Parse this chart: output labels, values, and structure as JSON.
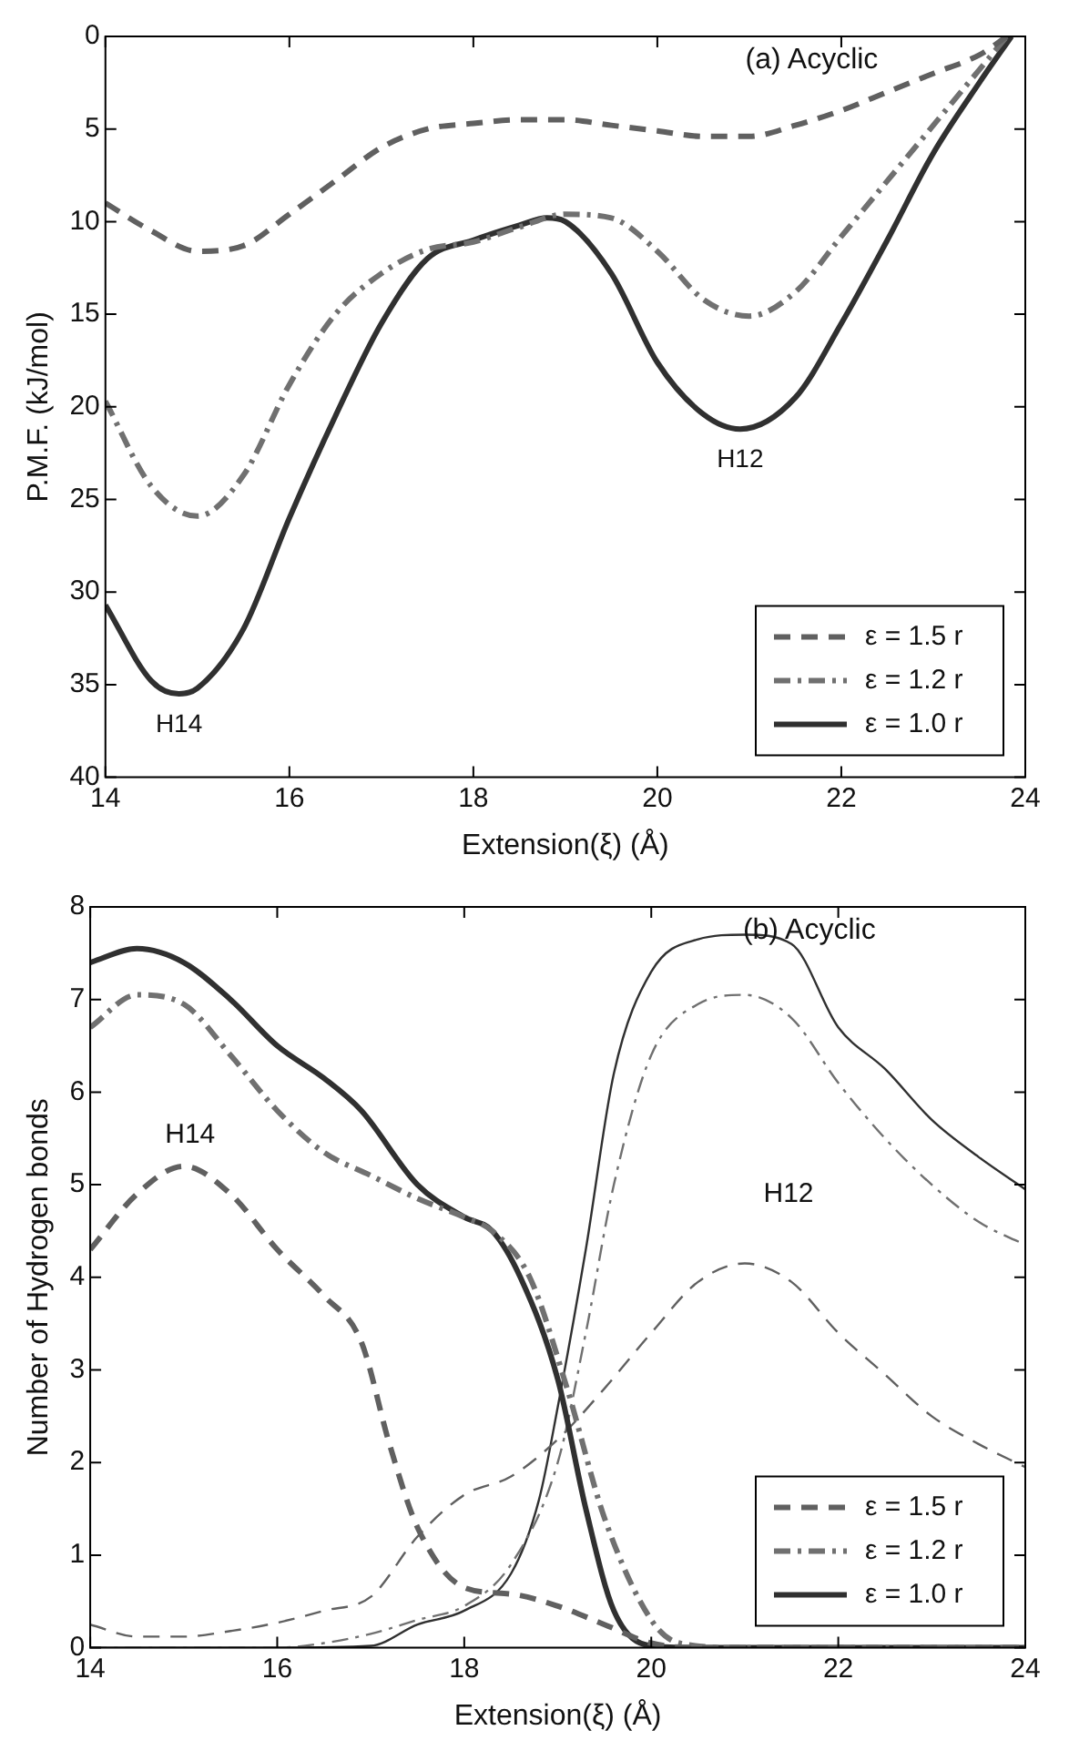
{
  "chart_data": [
    {
      "type": "line",
      "xlabel": "Extension(ξ) (Å)",
      "ylabel": "P.M.F. (kJ/mol)",
      "xlim": [
        14,
        24
      ],
      "xticks": [
        14,
        16,
        18,
        20,
        22,
        24
      ],
      "ylim": [
        40,
        0
      ],
      "yticks": [
        0,
        5,
        10,
        15,
        20,
        25,
        30,
        35,
        40
      ],
      "grid": false,
      "legend": "bottom right",
      "marker": "none",
      "annotations": [
        "(a) Acyclic",
        {
          "text": "H14",
          "x": 14.8,
          "y": 35.5
        },
        {
          "text": "H12",
          "x": 20.9,
          "y": 21.2
        }
      ],
      "series": [
        {
          "name": "ε = 1.5 r",
          "color": "#606060",
          "line_style": "dashed",
          "x": [
            14,
            14.5,
            15,
            15.5,
            16,
            16.5,
            17,
            17.5,
            18,
            18.5,
            19,
            19.5,
            20,
            20.5,
            21,
            21.5,
            22,
            22.5,
            23,
            23.5,
            23.8
          ],
          "values": [
            9,
            10.5,
            11.6,
            11.3,
            9.6,
            7.8,
            6,
            5,
            4.7,
            4.5,
            4.5,
            4.8,
            5.1,
            5.4,
            5.4,
            4.8,
            4,
            3,
            2,
            1,
            0
          ]
        },
        {
          "name": "ε = 1.2 r",
          "color": "#707070",
          "line_style": "dashdot",
          "x": [
            14,
            14.5,
            15,
            15.5,
            16,
            16.5,
            17,
            17.5,
            18,
            18.5,
            19,
            19.5,
            20,
            20.5,
            21,
            21.5,
            22,
            22.5,
            23,
            23.5,
            23.8
          ],
          "values": [
            19.7,
            24.3,
            25.9,
            23.7,
            18.8,
            15,
            12.8,
            11.5,
            11.1,
            10.3,
            9.6,
            9.8,
            11.6,
            14.2,
            15.1,
            13.8,
            10.8,
            7.8,
            4.8,
            1.8,
            0
          ]
        },
        {
          "name": "ε = 1.0 r",
          "color": "#303030",
          "line_style": "solid",
          "x": [
            14,
            14.5,
            14.8,
            15,
            15.5,
            16,
            16.5,
            17,
            17.5,
            18,
            18.5,
            18.8,
            19,
            19.5,
            20,
            20.5,
            20.9,
            21.5,
            22,
            22.5,
            23,
            23.5,
            23.85
          ],
          "values": [
            30.7,
            34.8,
            35.5,
            35.2,
            32,
            26,
            20.5,
            15.5,
            12,
            11,
            10.2,
            9.8,
            10,
            12.8,
            17.6,
            20.4,
            21.2,
            19.5,
            15.5,
            11,
            6.3,
            2.5,
            0
          ]
        }
      ]
    },
    {
      "type": "line",
      "xlabel": "Extension(ξ) (Å)",
      "ylabel": "Number of Hydrogen bonds",
      "xlim": [
        14,
        24
      ],
      "xticks": [
        14,
        16,
        18,
        20,
        22,
        24
      ],
      "ylim": [
        0,
        8
      ],
      "yticks": [
        0,
        1,
        2,
        3,
        4,
        5,
        6,
        7,
        8
      ],
      "grid": false,
      "legend": "bottom right",
      "marker": "none",
      "annotations": [
        "(b) Acyclic",
        "H14",
        "H12"
      ],
      "series": [
        {
          "name": "ε = 1.5 r",
          "color": "#606060",
          "line_style": "dashed",
          "x": [
            14,
            14.5,
            15,
            15.5,
            16,
            16.5,
            16.9,
            17.2,
            17.5,
            18,
            18.5,
            19,
            19.5,
            20,
            20.5,
            24
          ],
          "values": [
            4.3,
            4.9,
            5.2,
            4.9,
            4.3,
            3.8,
            3.3,
            2.2,
            1.3,
            0.65,
            0.58,
            0.45,
            0.25,
            0.05,
            0,
            0
          ]
        },
        {
          "name": "ε = 1.2 r",
          "color": "#707070",
          "line_style": "dashdot",
          "x": [
            14,
            14.5,
            15,
            15.5,
            16,
            16.5,
            17,
            17.5,
            18,
            18.3,
            18.7,
            19.1,
            19.5,
            20,
            20.3,
            21,
            24
          ],
          "values": [
            6.7,
            7.05,
            6.95,
            6.4,
            5.8,
            5.35,
            5.1,
            4.85,
            4.65,
            4.5,
            4,
            2.8,
            1.4,
            0.3,
            0.05,
            0,
            0
          ]
        },
        {
          "name": "ε = 1.0 r",
          "color": "#303030",
          "line_style": "solid",
          "x": [
            14,
            14.5,
            15,
            15.5,
            16,
            16.5,
            16.9,
            17.5,
            18,
            18.3,
            18.6,
            19,
            19.3,
            19.6,
            20,
            20.5,
            24
          ],
          "values": [
            7.4,
            7.55,
            7.4,
            7,
            6.5,
            6.15,
            5.8,
            5,
            4.65,
            4.5,
            4,
            2.9,
            1.5,
            0.4,
            0.02,
            0,
            0
          ]
        },
        {
          "color": "#606060",
          "line_style": "dashed",
          "x": [
            14,
            14.5,
            15,
            15.5,
            16,
            16.5,
            17,
            17.5,
            18,
            18.5,
            19,
            19.5,
            20,
            20.5,
            21,
            21.5,
            22,
            22.5,
            23,
            23.5,
            24
          ],
          "values": [
            0.25,
            0.12,
            0.12,
            0.18,
            0.27,
            0.4,
            0.55,
            1.2,
            1.65,
            1.85,
            2.25,
            2.8,
            3.4,
            3.95,
            4.15,
            3.95,
            3.4,
            2.95,
            2.5,
            2.2,
            1.95
          ]
        },
        {
          "color": "#707070",
          "line_style": "dashdot",
          "x": [
            14,
            16,
            16.5,
            17,
            17.5,
            18,
            18.5,
            19,
            19.3,
            19.6,
            20,
            20.5,
            21,
            21.5,
            22,
            22.5,
            23,
            23.5,
            24
          ],
          "values": [
            0,
            0,
            0.05,
            0.15,
            0.3,
            0.45,
            0.9,
            2,
            3.4,
            5,
            6.4,
            6.95,
            7.05,
            6.8,
            6.1,
            5.5,
            5,
            4.6,
            4.35
          ]
        },
        {
          "color": "#303030",
          "line_style": "solid",
          "x": [
            14,
            16,
            17,
            17.5,
            18,
            18.5,
            18.8,
            19,
            19.3,
            19.6,
            20,
            20.5,
            21,
            21.5,
            22,
            22.5,
            23,
            23.5,
            24
          ],
          "values": [
            0,
            0,
            0.02,
            0.25,
            0.4,
            0.8,
            1.6,
            2.6,
            4.3,
            6.2,
            7.3,
            7.65,
            7.7,
            7.6,
            6.7,
            6.25,
            5.7,
            5.3,
            4.95
          ]
        }
      ]
    }
  ]
}
